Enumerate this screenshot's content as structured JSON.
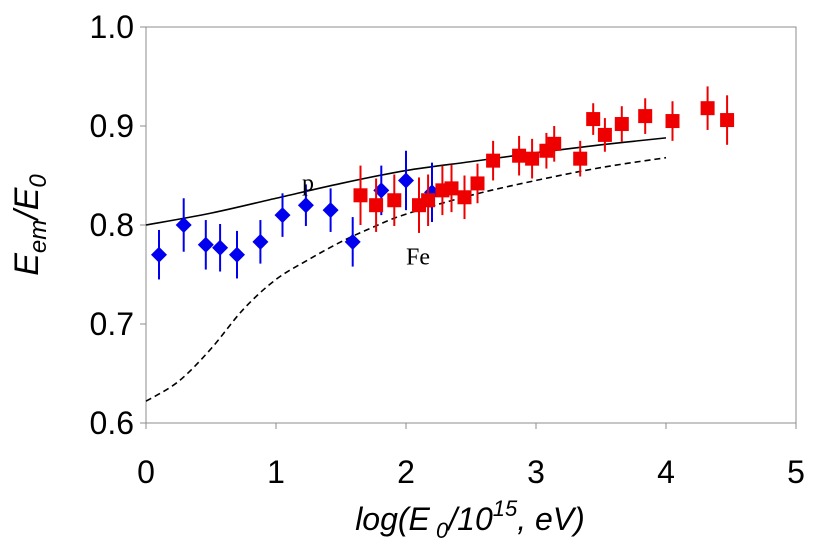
{
  "chart_data": {
    "type": "scatter",
    "title": "",
    "xlabel": "log(E0/10^15, eV)",
    "ylabel": "Eem/E0",
    "xlim": [
      0,
      5
    ],
    "ylim": [
      0.6,
      1.0
    ],
    "x_ticks": [
      "0",
      "1",
      "2",
      "3",
      "4",
      "5"
    ],
    "y_ticks": [
      "0.6",
      "0.7",
      "0.8",
      "0.9",
      "1.0"
    ],
    "grid": false,
    "series": [
      {
        "name": "blue diamonds",
        "marker": "diamond",
        "color": "#0000ee",
        "points": [
          {
            "x": 0.1,
            "y": 0.77,
            "err": 0.025
          },
          {
            "x": 0.29,
            "y": 0.8,
            "err": 0.027
          },
          {
            "x": 0.46,
            "y": 0.78,
            "err": 0.025
          },
          {
            "x": 0.57,
            "y": 0.777,
            "err": 0.024
          },
          {
            "x": 0.7,
            "y": 0.77,
            "err": 0.024
          },
          {
            "x": 0.88,
            "y": 0.783,
            "err": 0.022
          },
          {
            "x": 1.05,
            "y": 0.81,
            "err": 0.022
          },
          {
            "x": 1.23,
            "y": 0.82,
            "err": 0.021
          },
          {
            "x": 1.42,
            "y": 0.815,
            "err": 0.022
          },
          {
            "x": 1.59,
            "y": 0.783,
            "err": 0.025
          },
          {
            "x": 1.81,
            "y": 0.835,
            "err": 0.025
          },
          {
            "x": 2.0,
            "y": 0.845,
            "err": 0.03
          },
          {
            "x": 2.2,
            "y": 0.833,
            "err": 0.03
          }
        ]
      },
      {
        "name": "red squares",
        "marker": "square",
        "color": "#ee0000",
        "points": [
          {
            "x": 1.65,
            "y": 0.83,
            "err": 0.03
          },
          {
            "x": 1.77,
            "y": 0.82,
            "err": 0.027
          },
          {
            "x": 1.91,
            "y": 0.825,
            "err": 0.026
          },
          {
            "x": 2.1,
            "y": 0.82,
            "err": 0.028
          },
          {
            "x": 2.17,
            "y": 0.825,
            "err": 0.026
          },
          {
            "x": 2.28,
            "y": 0.835,
            "err": 0.025
          },
          {
            "x": 2.35,
            "y": 0.837,
            "err": 0.024
          },
          {
            "x": 2.45,
            "y": 0.828,
            "err": 0.022
          },
          {
            "x": 2.55,
            "y": 0.842,
            "err": 0.02
          },
          {
            "x": 2.67,
            "y": 0.865,
            "err": 0.02
          },
          {
            "x": 2.87,
            "y": 0.87,
            "err": 0.02
          },
          {
            "x": 2.97,
            "y": 0.867,
            "err": 0.02
          },
          {
            "x": 3.08,
            "y": 0.875,
            "err": 0.018
          },
          {
            "x": 3.14,
            "y": 0.882,
            "err": 0.018
          },
          {
            "x": 3.34,
            "y": 0.867,
            "err": 0.018
          },
          {
            "x": 3.44,
            "y": 0.907,
            "err": 0.016
          },
          {
            "x": 3.53,
            "y": 0.891,
            "err": 0.017
          },
          {
            "x": 3.66,
            "y": 0.902,
            "err": 0.018
          },
          {
            "x": 3.84,
            "y": 0.91,
            "err": 0.018
          },
          {
            "x": 4.05,
            "y": 0.905,
            "err": 0.02
          },
          {
            "x": 4.32,
            "y": 0.918,
            "err": 0.022
          },
          {
            "x": 4.47,
            "y": 0.906,
            "err": 0.025
          }
        ]
      }
    ],
    "curves": [
      {
        "name": "p",
        "style": "solid",
        "label": "p",
        "label_at": {
          "x": 1.2,
          "y": 0.835
        },
        "points": [
          [
            0,
            0.8
          ],
          [
            0.5,
            0.812
          ],
          [
            1.0,
            0.827
          ],
          [
            1.5,
            0.842
          ],
          [
            2.0,
            0.855
          ],
          [
            2.5,
            0.864
          ],
          [
            3.0,
            0.873
          ],
          [
            3.5,
            0.881
          ],
          [
            4.0,
            0.888
          ]
        ]
      },
      {
        "name": "Fe",
        "style": "dashed",
        "label": "Fe",
        "label_at": {
          "x": 2.0,
          "y": 0.76
        },
        "points": [
          [
            0,
            0.622
          ],
          [
            0.25,
            0.642
          ],
          [
            0.5,
            0.675
          ],
          [
            0.75,
            0.715
          ],
          [
            1.0,
            0.745
          ],
          [
            1.25,
            0.765
          ],
          [
            1.5,
            0.783
          ],
          [
            1.75,
            0.798
          ],
          [
            2.0,
            0.811
          ],
          [
            2.5,
            0.83
          ],
          [
            3.0,
            0.845
          ],
          [
            3.5,
            0.858
          ],
          [
            4.0,
            0.868
          ]
        ]
      }
    ]
  }
}
